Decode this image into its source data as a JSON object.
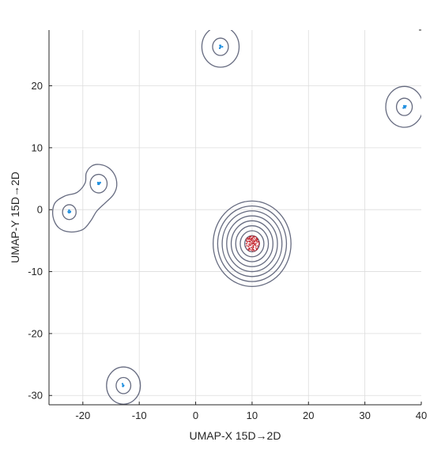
{
  "chart_data": {
    "type": "scatter",
    "title": "",
    "xlabel": "UMAP-X  15D→2D",
    "ylabel": "UMAP-Y  15D→2D",
    "xlim": [
      -26,
      40
    ],
    "ylim": [
      -31.5,
      29
    ],
    "xticks": [
      -20,
      -10,
      0,
      10,
      20,
      30,
      40
    ],
    "yticks": [
      -30,
      -20,
      -10,
      0,
      10,
      20
    ],
    "grid": true,
    "legend": "none",
    "colors": {
      "cluster_points": "#1f8fe0",
      "main_cluster_points": "#c0101a",
      "contour": "#666b80",
      "grid": "#dcdcdc",
      "axis": "#262626"
    },
    "clusters": [
      {
        "id": "top",
        "center": [
          4.4,
          26.3
        ],
        "point_color": "#1f8fe0",
        "n_points": 6,
        "contour_radii": [
          1.4,
          3.3
        ]
      },
      {
        "id": "right",
        "center": [
          37.0,
          16.6
        ],
        "point_color": "#1f8fe0",
        "n_points": 6,
        "contour_radii": [
          1.4,
          3.3
        ]
      },
      {
        "id": "left-upper",
        "center": [
          -17.2,
          4.2
        ],
        "point_color": "#1f8fe0",
        "n_points": 6,
        "contour_radii": [
          1.5
        ]
      },
      {
        "id": "left-lower",
        "center": [
          -22.4,
          -0.4
        ],
        "point_color": "#1f8fe0",
        "n_points": 6,
        "contour_radii": [
          1.2
        ]
      },
      {
        "id": "bottom",
        "center": [
          -12.8,
          -28.4
        ],
        "point_color": "#1f8fe0",
        "n_points": 6,
        "contour_radii": [
          1.3,
          3.0
        ]
      },
      {
        "id": "main",
        "center": [
          10.0,
          -5.5
        ],
        "point_color": "#c0101a",
        "n_points": 160,
        "contour_radii": [
          1.3,
          2.1,
          2.9,
          3.7,
          4.5,
          5.3,
          6.1,
          6.9
        ]
      }
    ],
    "merged_contour": {
      "between": [
        "left-upper",
        "left-lower"
      ],
      "outline": [
        [
          -17.2,
          7.3
        ],
        [
          -15.5,
          6.8
        ],
        [
          -14.3,
          5.5
        ],
        [
          -14.0,
          3.8
        ],
        [
          -14.6,
          2.4
        ],
        [
          -15.9,
          1.2
        ],
        [
          -17.5,
          -0.2
        ],
        [
          -18.6,
          -1.8
        ],
        [
          -20.0,
          -3.2
        ],
        [
          -22.3,
          -3.6
        ],
        [
          -24.3,
          -2.9
        ],
        [
          -25.3,
          -1.1
        ],
        [
          -25.0,
          1.0
        ],
        [
          -23.2,
          2.2
        ],
        [
          -21.0,
          2.8
        ],
        [
          -19.6,
          4.3
        ],
        [
          -19.4,
          5.9
        ],
        [
          -18.5,
          7.0
        ],
        [
          -17.2,
          7.3
        ]
      ]
    }
  }
}
